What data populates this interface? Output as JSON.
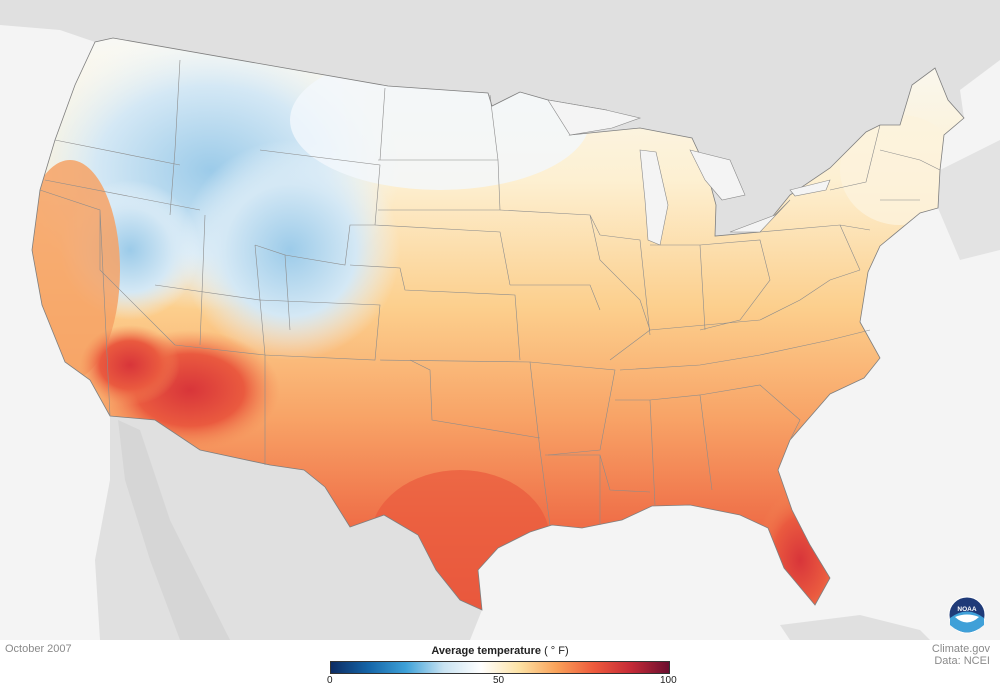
{
  "map": {
    "date": "October 2007",
    "legend": {
      "title": "Average temperature",
      "unit": "( ° F)",
      "ticks": [
        "0",
        "50",
        "100"
      ],
      "min": 0,
      "max": 100,
      "colors": [
        "#0d2c63",
        "#1565a8",
        "#3ea1d8",
        "#c9e3f2",
        "#ffffff",
        "#fde3a6",
        "#f9a25a",
        "#ee5a3c",
        "#c42a37",
        "#6b0e2f"
      ]
    },
    "credit": {
      "source": "Climate.gov",
      "data": "Data: NCEI"
    },
    "logo_text": "NOAA",
    "colors": {
      "background": "#f4f4f4",
      "land_neighbor": "#e0e0e0",
      "state_border": "#7f7f7f"
    }
  }
}
